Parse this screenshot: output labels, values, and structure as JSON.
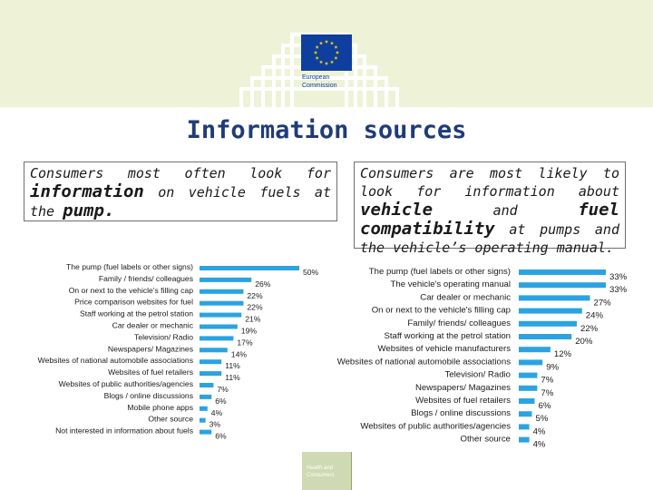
{
  "header": {
    "logo_text": [
      "European",
      "Commission"
    ],
    "footer_text": [
      "Health and",
      "Consumers"
    ]
  },
  "title": "Information sources",
  "caption_left": {
    "line1": "Consumers most often look for",
    "bold": "information",
    "line2": " on vehicle fuels at the",
    "bold2": "pump."
  },
  "caption_right": {
    "line1": "Consumers are most likely to look for information about",
    "bold1": "vehicle",
    "mid": " and ",
    "bold2": "fuel compatibility",
    "line2": " at pumps and the vehicle’s operating manual."
  },
  "colors": {
    "bar": "#2ba3e2",
    "title": "#1f3b78",
    "header_band": "#eef3d8"
  },
  "chart_data": [
    {
      "type": "bar",
      "orientation": "horizontal",
      "categories": [
        "The pump (fuel labels or other signs)",
        "Family / friends/ colleagues",
        "On or next to the vehicle's filling cap",
        "Price comparison websites for fuel",
        "Staff working at the petrol station",
        "Car dealer or mechanic",
        "Television/ Radio",
        "Newspapers/ Magazines",
        "Websites of national automobile associations",
        "Websites of fuel retailers",
        "Websites of public authorities/agencies",
        "Blogs / online discussions",
        "Mobile phone apps",
        "Other source",
        "Not interested in information about fuels"
      ],
      "values": [
        50,
        26,
        22,
        22,
        21,
        19,
        17,
        14,
        11,
        11,
        7,
        6,
        4,
        3,
        6
      ],
      "value_labels": [
        "50%",
        "26%",
        "22%",
        "22%",
        "21%",
        "19%",
        "17%",
        "14%",
        "11%",
        "11%",
        "7%",
        "6%",
        "4%",
        "3%",
        "6%"
      ],
      "xlim": [
        0,
        50
      ]
    },
    {
      "type": "bar",
      "orientation": "horizontal",
      "categories": [
        "The pump (fuel labels or other signs)",
        "The vehicle's operating manual",
        "Car dealer or mechanic",
        "On or next to the vehicle's filling cap",
        "Family/ friends/ colleagues",
        "Staff working at the petrol station",
        "Websites of vehicle manufacturers",
        "Websites of national automobile associations",
        "Television/ Radio",
        "Newspapers/ Magazines",
        "Websites of fuel retailers",
        "Blogs / online discussions",
        "Websites of public authorities/agencies",
        "Other source"
      ],
      "values": [
        33,
        33,
        27,
        24,
        22,
        20,
        12,
        9,
        7,
        7,
        6,
        5,
        4,
        4
      ],
      "value_labels": [
        "33%",
        "33%",
        "27%",
        "24%",
        "22%",
        "20%",
        "12%",
        "9%",
        "7%",
        "7%",
        "6%",
        "5%",
        "4%",
        "4%"
      ],
      "xlim": [
        0,
        33
      ]
    }
  ]
}
